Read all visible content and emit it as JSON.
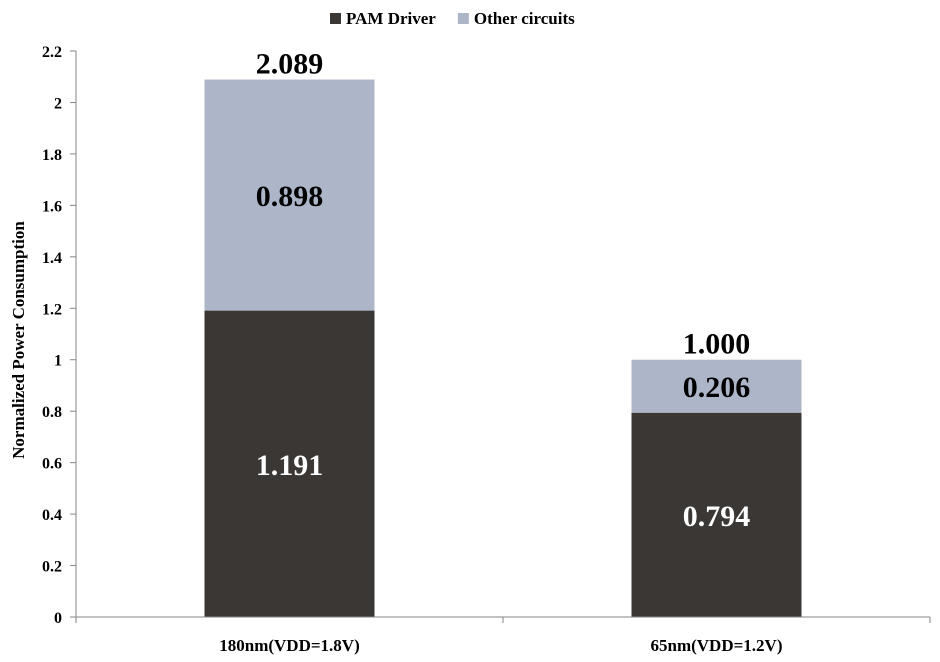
{
  "chart_data": {
    "type": "bar",
    "stacked": true,
    "ylabel": "Normalized Power Consumption",
    "xlabel": "",
    "ylim": [
      0,
      2.2
    ],
    "yticks": [
      0,
      0.2,
      0.4,
      0.6,
      0.8,
      1,
      1.2,
      1.4,
      1.6,
      1.8,
      2,
      2.2
    ],
    "ytick_labels": [
      "0",
      "0.2",
      "0.4",
      "0.6",
      "0.8",
      "1",
      "1.2",
      "1.4",
      "1.6",
      "1.8",
      "2",
      "2.2"
    ],
    "categories": [
      "180nm(VDD=1.8V)",
      "65nm(VDD=1.2V)"
    ],
    "series": [
      {
        "name": "PAM Driver",
        "color": "#3a3734",
        "label_color": "#ffffff",
        "values": [
          1.191,
          0.794
        ],
        "data_labels": [
          "1.191",
          "0.794"
        ]
      },
      {
        "name": "Other circuits",
        "color": "#adb5c8",
        "label_color": "#000000",
        "values": [
          0.898,
          0.206
        ],
        "data_labels": [
          "0.898",
          "0.206"
        ]
      }
    ],
    "totals": [
      2.089,
      1.0
    ],
    "total_labels": [
      "2.089",
      "1.000"
    ],
    "legend_position": "top-center",
    "grid": false
  }
}
